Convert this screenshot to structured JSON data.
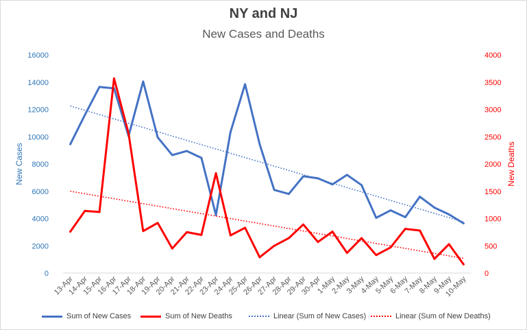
{
  "chart_data": {
    "type": "line",
    "title": "NY and NJ",
    "subtitle": "New Cases and Deaths",
    "ylabel_left": "New Cases",
    "ylabel_right": "New Deaths",
    "xlabel": "",
    "ylim_left": [
      0,
      16000
    ],
    "ylim_right": [
      0,
      4000
    ],
    "yticks_left": [
      "0",
      "2000",
      "4000",
      "6000",
      "8000",
      "10000",
      "12000",
      "14000",
      "16000"
    ],
    "yticks_right": [
      "0",
      "500",
      "1000",
      "1500",
      "2000",
      "2500",
      "3000",
      "3500",
      "4000"
    ],
    "categories": [
      "13-Apr",
      "14-Apr",
      "15-Apr",
      "16-Apr",
      "17-Apr",
      "18-Apr",
      "19-Apr",
      "20-Apr",
      "21-Apr",
      "22-Apr",
      "23-Apr",
      "24-Apr",
      "25-Apr",
      "26-Apr",
      "27-Apr",
      "28-Apr",
      "29-Apr",
      "30-Apr",
      "1-May",
      "2-May",
      "3-May",
      "4-May",
      "5-May",
      "6-May",
      "7-May",
      "8-May",
      "9-May",
      "10-May"
    ],
    "grid": false,
    "legend_position": "bottom",
    "series": [
      {
        "name": "Sum of New Cases",
        "axis": "left",
        "color": "#4472C4",
        "style": "solid",
        "values": [
          9450,
          11600,
          13650,
          13550,
          10050,
          14050,
          9950,
          8650,
          8950,
          8450,
          4250,
          10350,
          13850,
          9450,
          6100,
          5800,
          7100,
          6950,
          6500,
          7200,
          6450,
          4050,
          4600,
          4100,
          5600,
          4800,
          4300,
          3650
        ]
      },
      {
        "name": "Sum of New Deaths",
        "axis": "right",
        "color": "#FF0000",
        "style": "solid",
        "values": [
          760,
          1140,
          1120,
          3570,
          2560,
          770,
          920,
          450,
          750,
          700,
          1830,
          690,
          830,
          290,
          500,
          640,
          890,
          570,
          760,
          370,
          640,
          330,
          470,
          810,
          780,
          260,
          530,
          160
        ]
      },
      {
        "name": "Linear (Sum of New Cases)",
        "axis": "left",
        "color": "#4472C4",
        "style": "dotted",
        "trend_start": 12250,
        "trend_end": 3750
      },
      {
        "name": "Linear (Sum of New Deaths)",
        "axis": "right",
        "color": "#FF0000",
        "style": "dotted",
        "trend_start": 1500,
        "trend_end": 270
      }
    ]
  }
}
